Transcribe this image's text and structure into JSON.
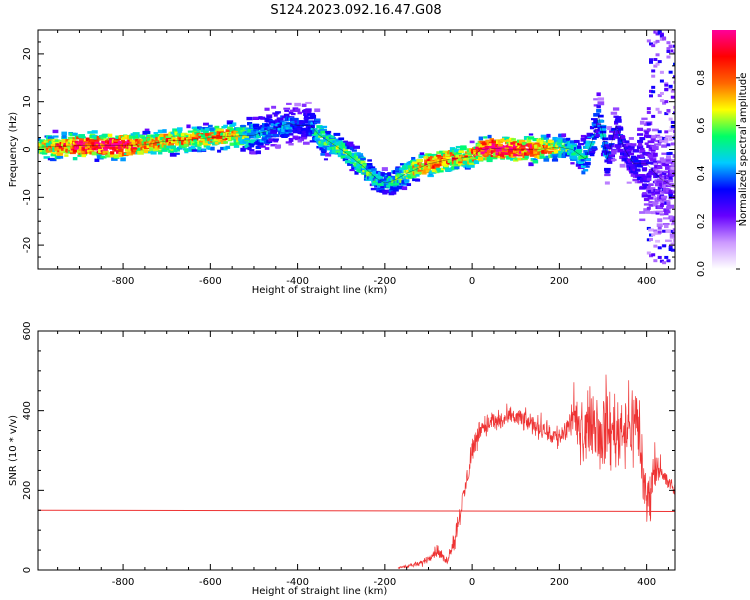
{
  "title": "S124.2023.092.16.47.G08",
  "chart_data": [
    {
      "type": "heatmap",
      "xlabel": "Height of straight line (km)",
      "ylabel": "Frequency (Hz)",
      "xlim": [
        -995,
        465
      ],
      "ylim": [
        -25,
        25
      ],
      "xticks": [
        -800,
        -600,
        -400,
        -200,
        0,
        200,
        400
      ],
      "yticks": [
        -20,
        -10,
        0,
        10,
        20
      ],
      "colorbar": {
        "label": "Normalized spectral amplitude",
        "range": [
          0,
          1
        ],
        "ticks": [
          0.0,
          0.2,
          0.4,
          0.6,
          0.8
        ],
        "colormap": [
          "#ffffff",
          "#cc99ff",
          "#6600ff",
          "#0000ff",
          "#00ccff",
          "#00ff66",
          "#ffff00",
          "#ff6600",
          "#ff0000",
          "#ff0099"
        ]
      },
      "ridge": {
        "x": [
          -995,
          -900,
          -800,
          -750,
          -700,
          -650,
          -600,
          -550,
          -500,
          -450,
          -420,
          -400,
          -370,
          -350,
          -300,
          -250,
          -220,
          -200,
          -180,
          -150,
          -100,
          -50,
          0,
          20,
          50,
          100,
          150,
          200,
          230,
          260,
          280,
          290,
          300,
          310,
          330,
          350,
          370,
          400,
          430,
          465
        ],
        "y": [
          0.5,
          0.8,
          0.8,
          1.0,
          1.8,
          2.0,
          2.5,
          2.8,
          3.0,
          4.5,
          5.5,
          5.0,
          5.0,
          3.0,
          0.0,
          -3.5,
          -6.0,
          -7.0,
          -6.5,
          -5.0,
          -3.0,
          -2.0,
          -1.5,
          0.0,
          0.2,
          0.0,
          0.0,
          0.5,
          0.0,
          -2.0,
          3.0,
          7.0,
          3.0,
          -2.0,
          5.0,
          0.0,
          -3.0,
          -3.0,
          -6.0,
          -8.0
        ],
        "amplitude": [
          0.6,
          0.9,
          0.95,
          0.7,
          0.75,
          0.7,
          0.7,
          0.75,
          0.45,
          0.35,
          0.4,
          0.3,
          0.4,
          0.5,
          0.55,
          0.55,
          0.5,
          0.45,
          0.5,
          0.6,
          0.8,
          0.8,
          0.7,
          0.9,
          0.95,
          0.9,
          0.85,
          0.6,
          0.5,
          0.45,
          0.4,
          0.35,
          0.4,
          0.35,
          0.3,
          0.3,
          0.3,
          0.25,
          0.2,
          0.2
        ]
      }
    },
    {
      "type": "line",
      "xlabel": "Height of straight line (km)",
      "ylabel": "SNR (10 * v/v)",
      "xlim": [
        -995,
        465
      ],
      "ylim": [
        0,
        600
      ],
      "xticks": [
        -800,
        -600,
        -400,
        -200,
        0,
        200,
        400
      ],
      "yticks": [
        0,
        200,
        400,
        600
      ],
      "line_color": "#ee3333",
      "series": [
        {
          "x": [
            -995,
            465
          ],
          "y": [
            150,
            147
          ]
        },
        {
          "x": [
            -170,
            -150,
            -120,
            -100,
            -80,
            -60,
            -40,
            -20,
            0,
            20,
            50,
            80,
            100,
            150,
            200,
            230,
            250,
            280,
            300,
            320,
            340,
            360,
            380,
            400,
            420,
            440,
            465
          ],
          "y": [
            5,
            10,
            15,
            30,
            50,
            20,
            80,
            180,
            300,
            360,
            370,
            380,
            385,
            360,
            330,
            380,
            340,
            380,
            350,
            350,
            360,
            360,
            380,
            150,
            280,
            230,
            200
          ],
          "noise": [
            2,
            8,
            10,
            15,
            25,
            20,
            35,
            45,
            50,
            45,
            45,
            40,
            40,
            40,
            50,
            80,
            90,
            130,
            150,
            150,
            140,
            150,
            170,
            130,
            60,
            40,
            30
          ]
        }
      ]
    }
  ]
}
